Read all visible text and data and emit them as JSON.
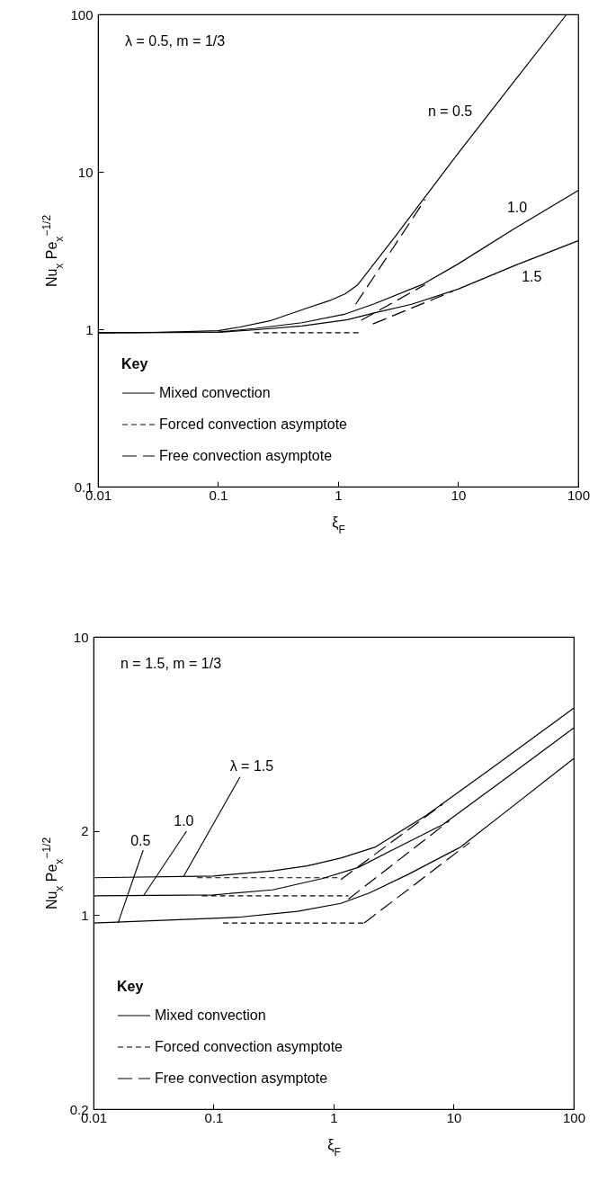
{
  "chart_data": [
    {
      "type": "line",
      "xlabel": "ξ$_{F}$",
      "ylabel": "Nu$_{x}$ Pe$_{x}$$^{−1/2}$",
      "legend_title": "Key",
      "legend": "bottom left",
      "grid": false,
      "log": "xy",
      "xlim": [
        0.01,
        100
      ],
      "xticks": [
        0.01,
        0.1,
        1,
        10,
        100
      ],
      "ylim": [
        0.1,
        100
      ],
      "yticks": [
        0.1,
        1,
        10,
        100
      ],
      "annotations": [
        "λ = 0.5, m = 1/3",
        {
          "text": "n = 0.5",
          "x": 18,
          "y": 24
        },
        {
          "text": "1.0",
          "x": 31,
          "y": 4.4
        },
        {
          "text": "1.5",
          "x": 41,
          "y": 2.78
        }
      ],
      "series": [
        {
          "name": "Mixed convection",
          "color": "#000000",
          "line_style": "solid",
          "x": [
            0.01,
            0.03,
            0.1,
            0.15,
            0.28,
            0.53,
            0.85,
            1.15,
            1.46,
            3,
            10,
            30,
            80
          ],
          "values": [
            0.95,
            0.955,
            0.98,
            1.03,
            1.14,
            1.35,
            1.52,
            1.68,
            1.92,
            3.9,
            13.1,
            38.5,
            100
          ]
        },
        {
          "color": "#000000",
          "line_style": "solid",
          "x": [
            0.01,
            0.1,
            0.2,
            0.5,
            1.15,
            2,
            5,
            10,
            30,
            100
          ],
          "values": [
            0.95,
            0.96,
            1.01,
            1.1,
            1.25,
            1.45,
            1.92,
            2.6,
            4.4,
            7.6
          ]
        },
        {
          "color": "#000000",
          "line_style": "solid",
          "x": [
            0.01,
            0.1,
            0.2,
            0.5,
            1.2,
            2,
            4.1,
            10,
            30,
            100
          ],
          "values": [
            0.95,
            0.955,
            0.99,
            1.05,
            1.15,
            1.27,
            1.44,
            1.8,
            2.55,
            3.65
          ]
        },
        {
          "name": "Forced convection asymptote",
          "color": "#000000",
          "line_style": "dotted",
          "x": [
            0.2,
            1.5
          ],
          "values": [
            0.95,
            0.95
          ]
        },
        {
          "name": "Free convection asymptote",
          "color": "#000000",
          "line_style": "dashed",
          "x": [
            1.4,
            5.3
          ],
          "values": [
            1.44,
            6.66
          ]
        },
        {
          "color": "#000000",
          "line_style": "dashed",
          "x": [
            1.56,
            5.3
          ],
          "values": [
            1.14,
            1.92
          ]
        },
        {
          "color": "#000000",
          "line_style": "dashed",
          "x": [
            1.95,
            9.1
          ],
          "values": [
            1.08,
            1.75
          ]
        }
      ]
    },
    {
      "type": "line",
      "xlabel": "ξ$_{F}$",
      "ylabel": "Nu$_{x}$ Pe$_{x}$$^{−1/2}$",
      "legend_title": "Key",
      "legend": "bottom left",
      "grid": false,
      "log": "xy",
      "xlim": [
        0.01,
        100
      ],
      "xticks": [
        0.01,
        0.1,
        1,
        10,
        100
      ],
      "ylim": [
        0.2,
        10
      ],
      "yticks": [
        0.2,
        1,
        2,
        10
      ],
      "annotations": [
        "n = 1.5, m = 1/3",
        {
          "text": "λ = 1.5",
          "x": 0.056,
          "y": 1.37
        },
        {
          "text": "1.0",
          "x": 0.026,
          "y": 1.17
        },
        {
          "text": "0.5",
          "x": 0.016,
          "y": 0.935
        }
      ],
      "series": [
        {
          "name": "Mixed convection",
          "color": "#000000",
          "line_style": "solid",
          "x": [
            0.01,
            0.1,
            0.31,
            0.6,
            1.15,
            2.2,
            5.9,
            20,
            100
          ],
          "values": [
            1.36,
            1.38,
            1.44,
            1.5,
            1.6,
            1.75,
            2.28,
            3.33,
            5.54
          ]
        },
        {
          "color": "#000000",
          "line_style": "solid",
          "x": [
            0.01,
            0.1,
            0.31,
            0.8,
            1.6,
            3,
            8.1,
            30,
            100
          ],
          "values": [
            1.17,
            1.18,
            1.23,
            1.35,
            1.48,
            1.7,
            2.11,
            3.2,
            4.7
          ]
        },
        {
          "color": "#000000",
          "line_style": "solid",
          "x": [
            0.01,
            0.16,
            0.5,
            1.15,
            2,
            4.2,
            11.3,
            30,
            100
          ],
          "values": [
            0.935,
            0.98,
            1.03,
            1.1,
            1.2,
            1.4,
            1.75,
            2.43,
            3.65
          ]
        },
        {
          "name": "Forced convection asymptote",
          "color": "#000000",
          "line_style": "dotted",
          "x": [
            0.073,
            1.15
          ],
          "values": [
            1.36,
            1.36
          ]
        },
        {
          "color": "#000000",
          "line_style": "dotted",
          "x": [
            0.08,
            1.33
          ],
          "values": [
            1.17,
            1.17
          ]
        },
        {
          "color": "#000000",
          "line_style": "dotted",
          "x": [
            0.12,
            1.8
          ],
          "values": [
            0.935,
            0.935
          ]
        },
        {
          "name": "Free convection asymptote",
          "color": "#000000",
          "line_style": "dashed",
          "x": [
            1.15,
            8.1
          ],
          "values": [
            1.34,
            2.5
          ]
        },
        {
          "color": "#000000",
          "line_style": "dashed",
          "x": [
            1.33,
            9.2
          ],
          "values": [
            1.14,
            2.18
          ]
        },
        {
          "color": "#000000",
          "line_style": "dashed",
          "x": [
            1.8,
            13.6
          ],
          "values": [
            0.935,
            1.82
          ]
        }
      ]
    }
  ]
}
